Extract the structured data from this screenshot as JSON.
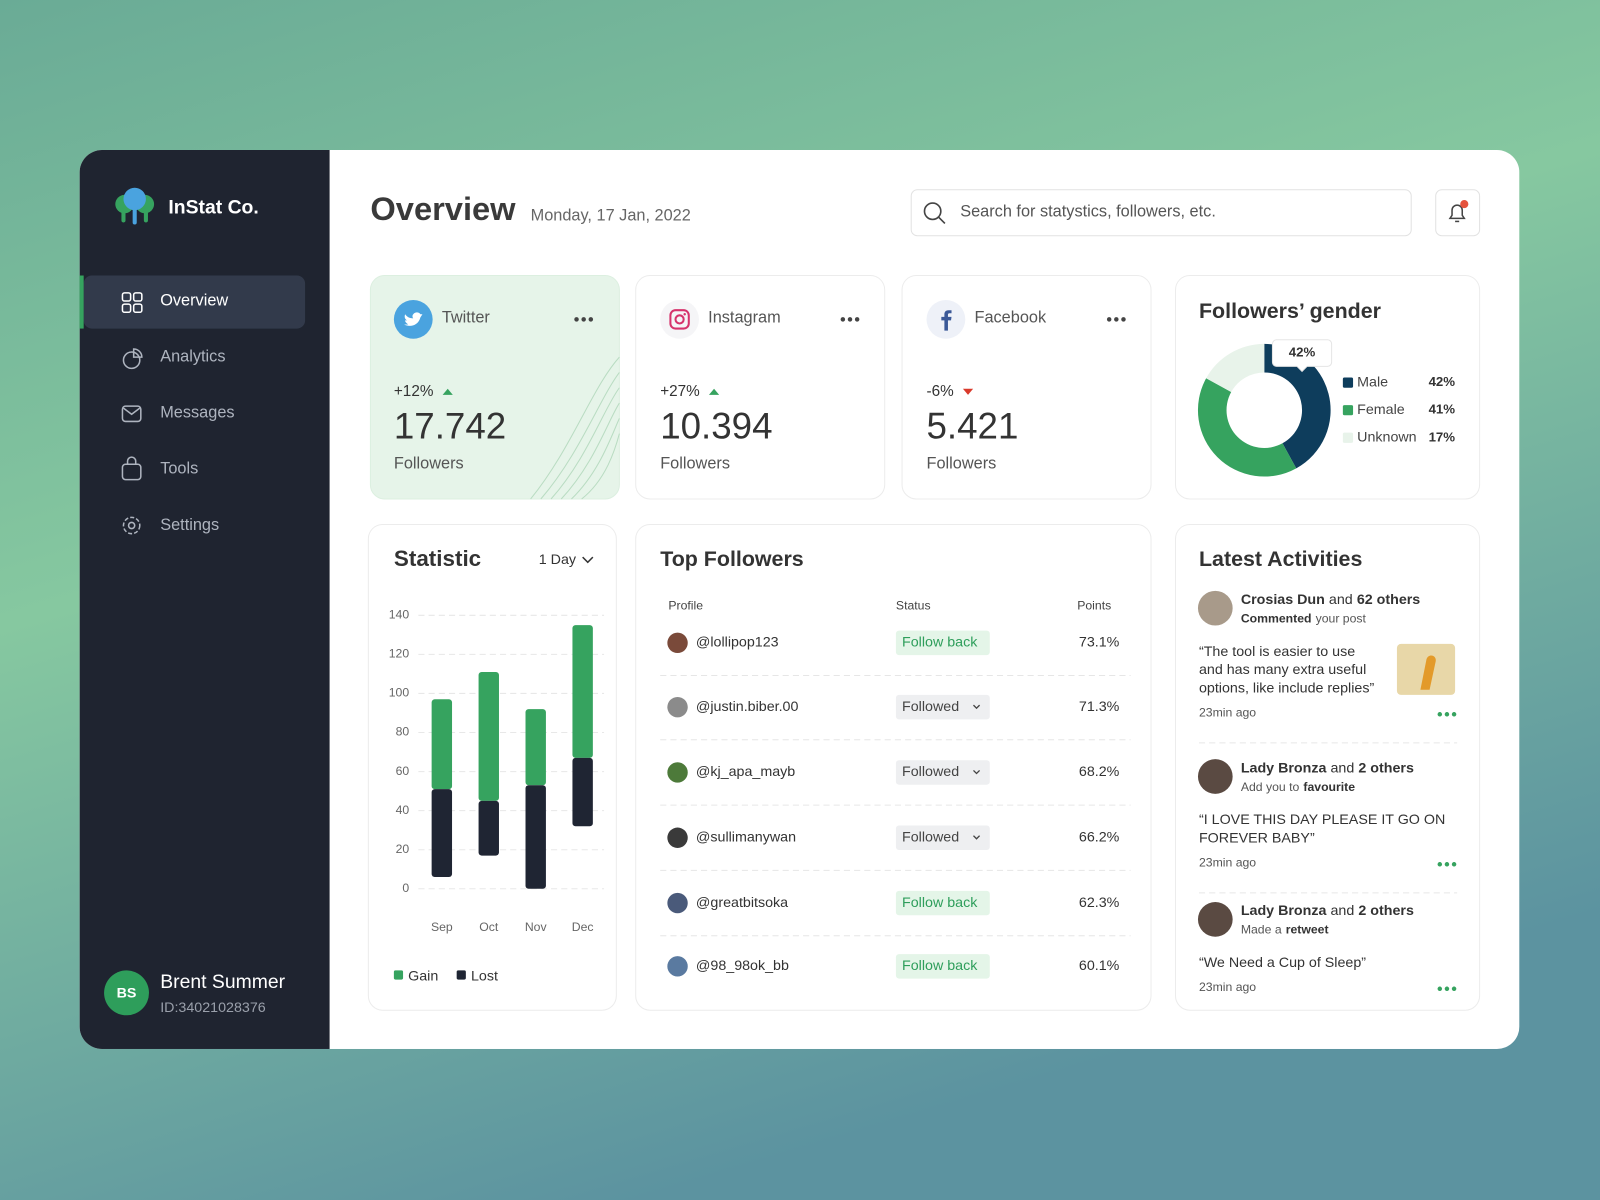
{
  "brand": "InStat Co.",
  "nav": [
    "Overview",
    "Analytics",
    "Messages",
    "Tools",
    "Settings"
  ],
  "user": {
    "initials": "BS",
    "name": "Brent Summer",
    "id": "ID:34021028376"
  },
  "header": {
    "title": "Overview",
    "date": "Monday, 17 Jan, 2022",
    "search_placeholder": "Search for statystics, followers, etc."
  },
  "cards": [
    {
      "platform": "Twitter",
      "change": "+12%",
      "trend": "up",
      "value": "17.742",
      "label": "Followers"
    },
    {
      "platform": "Instagram",
      "change": "+27%",
      "trend": "up",
      "value": "10.394",
      "label": "Followers"
    },
    {
      "platform": "Facebook",
      "change": "-6%",
      "trend": "down",
      "value": "5.421",
      "label": "Followers"
    }
  ],
  "chart_data": [
    {
      "type": "bar",
      "title": "Statistic",
      "period": "1 Day",
      "categories": [
        "Sep",
        "Oct",
        "Nov",
        "Dec"
      ],
      "series": [
        {
          "name": "Gain",
          "color": "#36a35f",
          "values": [
            [
              51,
              97
            ],
            [
              45,
              111
            ],
            [
              53,
              92
            ],
            [
              67,
              135
            ]
          ]
        },
        {
          "name": "Lost",
          "color": "#1f2533",
          "values": [
            [
              6,
              51
            ],
            [
              17,
              45
            ],
            [
              0,
              53
            ],
            [
              32,
              67
            ]
          ]
        }
      ],
      "ylim": [
        0,
        140
      ],
      "yticks": [
        0,
        20,
        40,
        60,
        80,
        100,
        120,
        140
      ],
      "grid": true
    },
    {
      "type": "pie",
      "title": "Followers’ gender",
      "categories": [
        "Male",
        "Female",
        "Unknown"
      ],
      "values": [
        42,
        41,
        17
      ],
      "value_labels": [
        "42%",
        "41%",
        "17%"
      ],
      "colors": [
        "#0e3d5c",
        "#36a35f",
        "#e8f3ea"
      ]
    }
  ],
  "top_followers": {
    "title": "Top Followers",
    "columns": [
      "Profile",
      "Status",
      "Points"
    ],
    "rows": [
      {
        "profile": "@lollipop123",
        "status": "Follow back",
        "status_color": "green",
        "points": "73.1%"
      },
      {
        "profile": "@justin.biber.00",
        "status": "Followed",
        "status_color": "grey",
        "points": "71.3%"
      },
      {
        "profile": "@kj_apa_mayb",
        "status": "Followed",
        "status_color": "grey",
        "points": "68.2%"
      },
      {
        "profile": "@sullimanywan",
        "status": "Followed",
        "status_color": "grey",
        "points": "66.2%"
      },
      {
        "profile": "@greatbitsoka",
        "status": "Follow back",
        "status_color": "green",
        "points": "62.3%"
      },
      {
        "profile": "@98_98ok_bb",
        "status": "Follow back",
        "status_color": "green",
        "points": "60.1%"
      }
    ]
  },
  "activities": {
    "title": "Latest Activities",
    "items": [
      {
        "user": "Crosias Dun",
        "joiner": "and",
        "others": "62 others",
        "action": [
          {
            "text": "Commented",
            "bold": true
          },
          {
            "text": "your post",
            "bold": false
          }
        ],
        "quote": [
          "“The tool is easier to use",
          "and has many extra useful",
          "options, like include replies”"
        ],
        "time": "23min ago"
      },
      {
        "user": "Lady Bronza",
        "joiner": "and",
        "others": "2 others",
        "action": [
          {
            "text": "Add you to",
            "bold": false
          },
          {
            "text": "favourite",
            "bold": true
          }
        ],
        "quote": [
          "“I LOVE THIS DAY PLEASE IT GO ON",
          "FOREVER BABY”"
        ],
        "time": "23min ago"
      },
      {
        "user": "Lady Bronza",
        "joiner": "and",
        "others": "2 others",
        "action": [
          {
            "text": "Made a",
            "bold": false
          },
          {
            "text": "retweet",
            "bold": true
          }
        ],
        "quote": [
          "“We Need a Cup of Sleep”"
        ],
        "time": "23min ago"
      }
    ]
  }
}
